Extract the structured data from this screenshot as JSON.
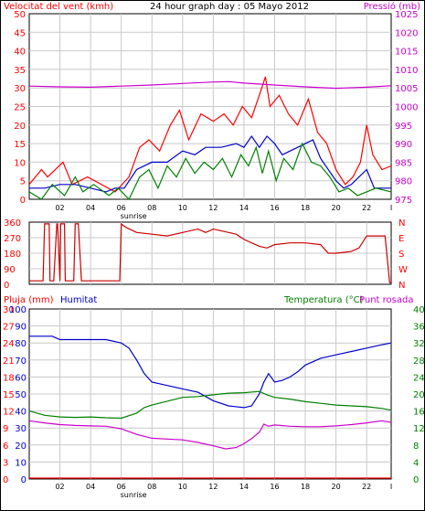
{
  "panels": [
    {
      "type": "line",
      "title_left": "Velocitat del vent (kmh)",
      "title_center": "24 hour graph day : 05 Mayo 2012",
      "title_right": "Pressió (mb)",
      "title_left_color": "#ff0000",
      "title_right_color": "#cc00cc",
      "left_ticks": [
        "0",
        "5",
        "10",
        "15",
        "20",
        "25",
        "30",
        "35",
        "40",
        "45",
        "50"
      ],
      "right_ticks": [
        "975",
        "980",
        "985",
        "990",
        "995",
        "1000",
        "1005",
        "1010",
        "1015",
        "1020",
        "1025"
      ],
      "ylim": [
        0,
        50
      ],
      "ylim_right": [
        975,
        1025
      ],
      "series": [
        {
          "name": "gust",
          "axis": "left",
          "color": "#ff0000",
          "x": [
            0,
            0.8,
            1.2,
            2.2,
            2.8,
            3.8,
            5.6,
            6.5,
            7.2,
            7.8,
            8.5,
            9.2,
            9.8,
            10.4,
            11.2,
            12,
            12.7,
            13.3,
            13.9,
            14.5,
            15,
            15.4,
            15.7,
            16.3,
            16.9,
            17.5,
            18.2,
            18.8,
            19.4,
            20,
            20.6,
            21.1,
            21.6,
            22,
            22.4,
            23,
            23.6
          ],
          "values": [
            4,
            8,
            6,
            10,
            4,
            6,
            2,
            6,
            14,
            16,
            13,
            20,
            24,
            16,
            23,
            21,
            23,
            20,
            25,
            22,
            28,
            33,
            25,
            28,
            23,
            20,
            27,
            18,
            15,
            8,
            4,
            6,
            10,
            20,
            12,
            8,
            9
          ]
        },
        {
          "name": "wind-avg",
          "axis": "left",
          "color": "#0000cc",
          "x": [
            0,
            1,
            2,
            3,
            4,
            5,
            5.6,
            6.2,
            7,
            8,
            9,
            10,
            10.8,
            11.5,
            12.5,
            13.5,
            14,
            14.5,
            15,
            15.5,
            16,
            16.5,
            17,
            17.5,
            18,
            18.5,
            19,
            20,
            20.5,
            21,
            21.5,
            22,
            22.5,
            23.6
          ],
          "values": [
            3,
            3,
            4,
            4,
            3,
            2,
            3,
            3,
            8,
            10,
            10,
            13,
            12,
            14,
            14,
            15,
            14,
            17,
            14,
            17,
            15,
            12,
            13,
            14,
            15,
            16,
            11,
            5,
            3,
            4,
            6,
            8,
            3,
            3
          ]
        },
        {
          "name": "wind",
          "axis": "left",
          "color": "#008000",
          "x": [
            0,
            0.8,
            1.5,
            2.3,
            3,
            3.5,
            4.2,
            5.2,
            5.8,
            6.5,
            7.2,
            7.8,
            8.4,
            9,
            9.6,
            10.2,
            10.8,
            11.4,
            12,
            12.6,
            13.2,
            13.8,
            14.3,
            14.8,
            15.2,
            15.6,
            16.1,
            16.6,
            17.2,
            17.8,
            18.4,
            19,
            19.6,
            20.2,
            20.8,
            21.4,
            22,
            22.6,
            23.6
          ],
          "values": [
            2,
            0,
            4,
            1,
            6,
            2,
            4,
            1,
            3,
            0,
            6,
            8,
            3,
            9,
            6,
            11,
            7,
            10,
            8,
            11,
            6,
            12,
            9,
            14,
            7,
            13,
            5,
            11,
            8,
            15,
            10,
            9,
            6,
            2,
            3,
            1,
            2,
            3,
            2
          ]
        },
        {
          "name": "pressure",
          "axis": "right",
          "color": "#cc00cc",
          "x": [
            0,
            2,
            4,
            6,
            8,
            10,
            12,
            13,
            14,
            16,
            18,
            20,
            22,
            23.6
          ],
          "values": [
            1005.5,
            1005.3,
            1005.2,
            1005.5,
            1005.8,
            1006.2,
            1006.6,
            1006.7,
            1006.3,
            1005.8,
            1005.3,
            1004.9,
            1005.2,
            1005.6
          ]
        }
      ]
    },
    {
      "type": "line",
      "dir_ticks": [
        "0",
        "90",
        "180",
        "270",
        "360"
      ],
      "dir_letters": [
        "N",
        "W",
        "S",
        "E",
        "N"
      ],
      "ylim": [
        0,
        360
      ],
      "series": [
        {
          "name": "direction",
          "color": "#cc0000",
          "x": [
            0,
            0.9,
            1,
            1.3,
            1.35,
            1.6,
            1.8,
            1.85,
            2,
            2.05,
            2.3,
            2.35,
            2.9,
            3,
            3.2,
            3.4,
            5.9,
            6,
            6.3,
            7,
            8,
            9,
            10,
            11,
            11.5,
            12,
            13,
            13.5,
            14,
            15,
            15.5,
            16,
            17,
            18,
            19,
            19.5,
            20,
            21,
            21.5,
            22,
            23.2,
            23.5,
            23.6
          ],
          "values": [
            20,
            20,
            350,
            350,
            20,
            20,
            350,
            350,
            20,
            350,
            350,
            20,
            20,
            350,
            350,
            20,
            20,
            350,
            330,
            300,
            290,
            280,
            300,
            320,
            300,
            320,
            300,
            290,
            260,
            220,
            210,
            230,
            240,
            240,
            230,
            180,
            180,
            190,
            210,
            280,
            280,
            10,
            10
          ]
        }
      ]
    },
    {
      "type": "line",
      "title_left": "Pluja (mm)",
      "title_left2": "Humitat",
      "title_right": "Temperatura (°C)Punt rosada",
      "title_left_color": "#ff0000",
      "title_left2_color": "#0000cc",
      "title_right_color_a": "#008000",
      "title_right_color_b": "#cc00cc",
      "title_right_part_a": "Temperatura (°C)",
      "title_right_part_b": "Punt rosada",
      "rain_ticks": [
        "0",
        "3",
        "6",
        "9",
        "12",
        "15",
        "18",
        "21",
        "24",
        "27",
        "30"
      ],
      "hum_ticks": [
        "0",
        "10",
        "20",
        "30",
        "40",
        "50",
        "60",
        "70",
        "80",
        "90",
        "100"
      ],
      "temp_ticks": [
        "0",
        "4",
        "8",
        "12",
        "16",
        "20",
        "24",
        "28",
        "32",
        "36",
        "40"
      ],
      "ylim_hum": [
        0,
        100
      ],
      "ylim_temp": [
        0,
        40
      ],
      "series": [
        {
          "name": "humidity",
          "axis": "hum",
          "color": "#0000cc",
          "x": [
            0,
            1.5,
            2,
            3,
            4,
            5,
            6,
            6.5,
            7,
            7.5,
            8,
            9,
            10,
            11,
            12,
            13,
            14,
            14.5,
            15,
            15.3,
            15.6,
            16,
            16.5,
            17,
            17.5,
            18,
            19,
            20,
            21,
            22,
            23,
            23.6
          ],
          "values": [
            84,
            84,
            82,
            82,
            82,
            82,
            80,
            77,
            70,
            62,
            57,
            55,
            53,
            51,
            46,
            43,
            42,
            43,
            50,
            57,
            62,
            57,
            58,
            60,
            63,
            67,
            71,
            73,
            75,
            77,
            79,
            80
          ]
        },
        {
          "name": "temperature",
          "axis": "temp",
          "color": "#008000",
          "x": [
            0,
            1,
            2,
            3,
            4,
            5,
            6,
            7,
            7.5,
            8,
            9,
            10,
            11,
            12,
            13,
            14,
            15,
            15.5,
            16,
            17,
            18,
            19,
            20,
            21,
            22,
            23,
            23.6
          ],
          "values": [
            16,
            15,
            14.6,
            14.5,
            14.6,
            14.4,
            14.3,
            15.5,
            16.8,
            17.4,
            18.3,
            19.2,
            19.4,
            19.8,
            20.2,
            20.3,
            20.6,
            19.8,
            19.2,
            18.8,
            18.2,
            17.8,
            17.4,
            17.2,
            17,
            16.6,
            16.2
          ]
        },
        {
          "name": "dewpoint",
          "axis": "temp",
          "color": "#cc00cc",
          "x": [
            0,
            1,
            2,
            3,
            4,
            5,
            6,
            7,
            8,
            9,
            10,
            11,
            12,
            12.8,
            13.5,
            14,
            14.5,
            15,
            15.3,
            15.6,
            16,
            17,
            18,
            19,
            20,
            21,
            22,
            23,
            23.6
          ],
          "values": [
            13.7,
            13.2,
            12.8,
            12.6,
            12.5,
            12.4,
            11.8,
            10.5,
            9.6,
            9.4,
            9.2,
            8.6,
            7.8,
            7.1,
            7.4,
            8.3,
            9.5,
            11,
            12.9,
            12.4,
            12.7,
            12.4,
            12.3,
            12.3,
            12.5,
            12.8,
            13.2,
            13.7,
            13.3
          ]
        },
        {
          "name": "rain",
          "axis": "rain",
          "color": "#ff0000",
          "x": [
            0,
            23.6
          ],
          "values": [
            0,
            0
          ]
        }
      ]
    }
  ],
  "x_ticks": [
    "02",
    "04",
    "06",
    "08",
    "10",
    "12",
    "14",
    "16",
    "18",
    "20",
    "22",
    "I"
  ],
  "sunrise_label": "sunrise",
  "colors": {
    "border": "#000000",
    "grid": "#c8c8c8",
    "left_axis": "#ff0000",
    "right_axis": "#cc00cc",
    "temp_axis": "#008000"
  }
}
